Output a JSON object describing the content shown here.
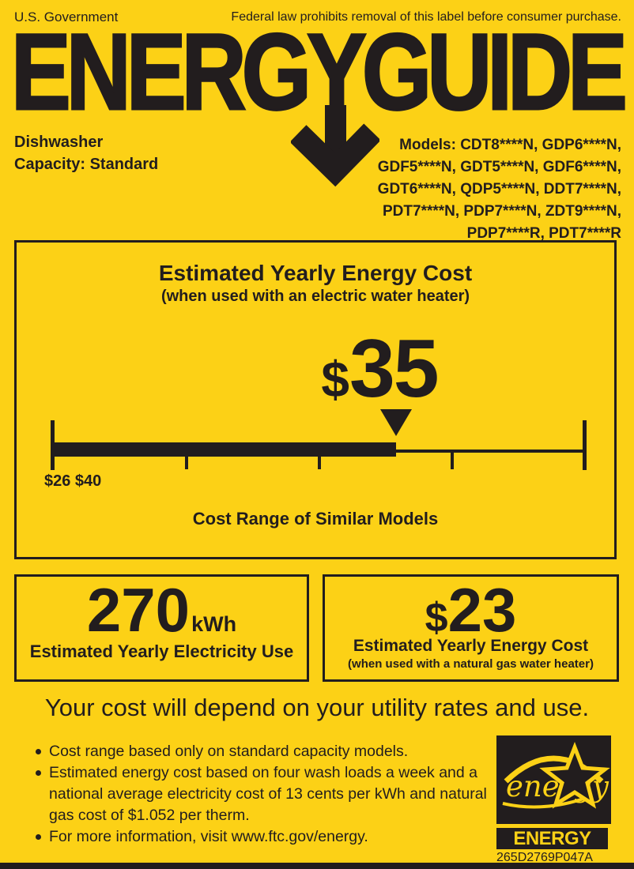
{
  "label": {
    "header": {
      "gov": "U.S. Government",
      "federal_notice": "Federal law prohibits removal of this label before consumer purchase.",
      "logo_text": "ENERGYGUIDE"
    },
    "product": {
      "type": "Dishwasher",
      "capacity": "Capacity: Standard",
      "models_lines": [
        "Models: CDT8****N, GDP6****N,",
        "GDF5****N, GDT5****N, GDF6****N,",
        "GDT6****N, QDP5****N, DDT7****N,",
        "PDT7****N, PDP7****N, ZDT9****N,",
        "PDP7****R, PDT7****R"
      ]
    },
    "main_box": {
      "title": "Estimated Yearly Energy Cost",
      "subtitle": "(when used with an electric water heater)",
      "cost_currency": "$",
      "cost_value": "35",
      "range_min": 26,
      "range_max": 40,
      "marker_value": 35,
      "range_labels": "$26 $40",
      "caption": "Cost Range of Similar Models"
    },
    "electricity_box": {
      "value": "270",
      "unit": "kWh",
      "caption": "Estimated Yearly Electricity Use"
    },
    "gas_cost_box": {
      "currency": "$",
      "value": "23",
      "caption": "Estimated Yearly Energy Cost",
      "subcaption": "(when used with a natural gas water heater)"
    },
    "utility_note": "Your cost will depend on your utility rates and use.",
    "footnotes": [
      "Cost range based only on standard capacity models.",
      "Estimated energy cost based on four wash loads a week and a national average electricity cost of 13 cents per kWh and natural gas cost of $1.052 per therm.",
      "For more information, visit www.ftc.gov/energy."
    ],
    "energy_star": {
      "script_text": "energy",
      "bar_text": "ENERGY STAR"
    },
    "part_number": "265D2769P047A",
    "colors": {
      "yellow": "#FCD116",
      "black": "#221D1E"
    },
    "icons": {
      "down_arrow": "down-arrow-icon",
      "energy_star_logo": "energy-star-logo"
    }
  }
}
